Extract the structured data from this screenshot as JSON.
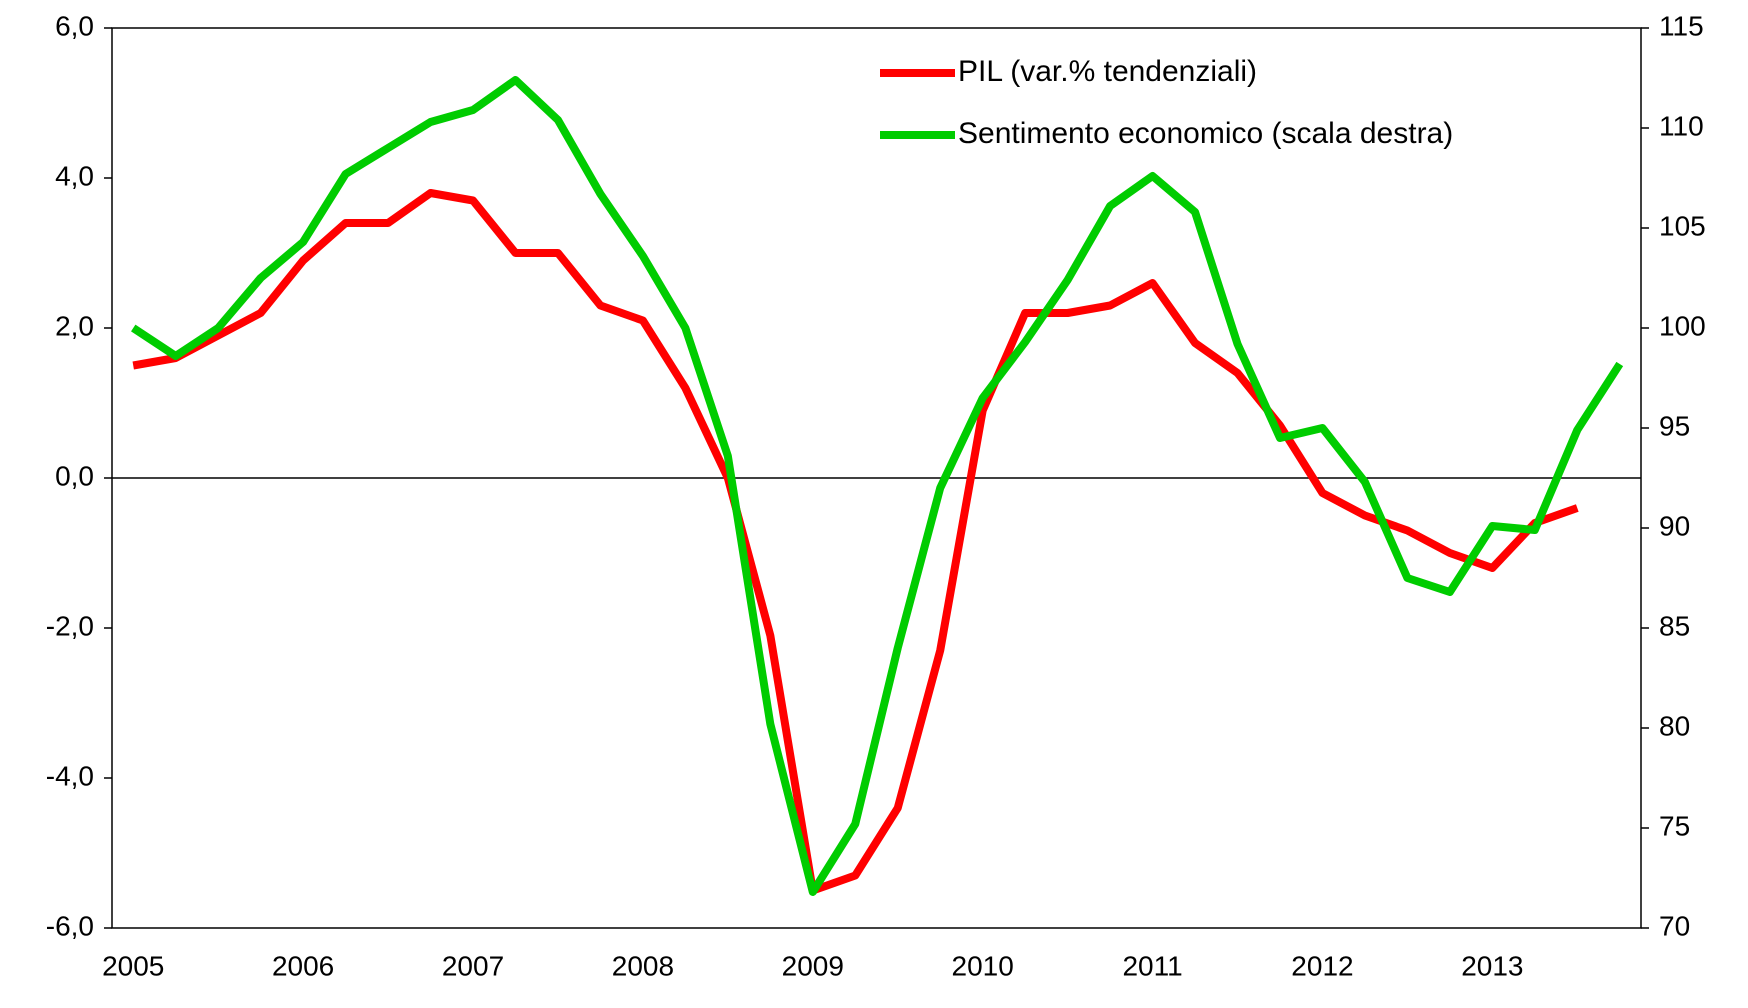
{
  "chart_data": {
    "type": "line",
    "categories": [
      "2005",
      null,
      null,
      null,
      "2006",
      null,
      null,
      null,
      "2007",
      null,
      null,
      null,
      "2008",
      null,
      null,
      null,
      "2009",
      null,
      null,
      null,
      "2010",
      null,
      null,
      null,
      "2011",
      null,
      null,
      null,
      "2012",
      null,
      null,
      null,
      "2013",
      null,
      null,
      null
    ],
    "series": [
      {
        "name": "PIL (var.% tendenziali)",
        "color": "#ff0000",
        "values": [
          1.5,
          1.6,
          1.9,
          2.2,
          2.9,
          3.4,
          3.4,
          3.8,
          3.7,
          3.0,
          3.0,
          2.3,
          2.1,
          1.2,
          0.0,
          -2.1,
          -5.5,
          -5.3,
          -4.4,
          -2.3,
          0.9,
          2.2,
          2.2,
          2.3,
          2.6,
          1.8,
          1.4,
          0.7,
          -0.2,
          -0.5,
          -0.7,
          -1.0,
          -1.2,
          -0.6,
          -0.4,
          null
        ]
      },
      {
        "name": "Sentimento economico (scala destra)",
        "color": "#00cc00",
        "axis": "y2",
        "values": [
          100.0,
          98.6,
          100.0,
          102.5,
          104.3,
          107.7,
          109.0,
          110.3,
          110.9,
          112.4,
          110.4,
          106.7,
          103.6,
          100.0,
          93.6,
          80.2,
          71.8,
          75.2,
          84.0,
          92.0,
          96.5,
          99.3,
          102.4,
          106.1,
          107.6,
          105.8,
          99.2,
          94.5,
          95.0,
          92.3,
          87.5,
          86.8,
          90.1,
          89.9,
          94.9,
          98.2
        ]
      }
    ],
    "ylim": [
      -6,
      6
    ],
    "yticks": [
      {
        "value": -6,
        "label": "-6,0"
      },
      {
        "value": -4,
        "label": "-4,0"
      },
      {
        "value": -2,
        "label": "-2,0"
      },
      {
        "value": 0,
        "label": "0,0"
      },
      {
        "value": 2,
        "label": "2,0"
      },
      {
        "value": 4,
        "label": "4,0"
      },
      {
        "value": 6,
        "label": "6,0"
      }
    ],
    "y2lim": [
      70,
      115
    ],
    "y2ticks": [
      70,
      75,
      80,
      85,
      90,
      95,
      100,
      105,
      110,
      115
    ],
    "zero_line": true,
    "legend": "top-right"
  }
}
